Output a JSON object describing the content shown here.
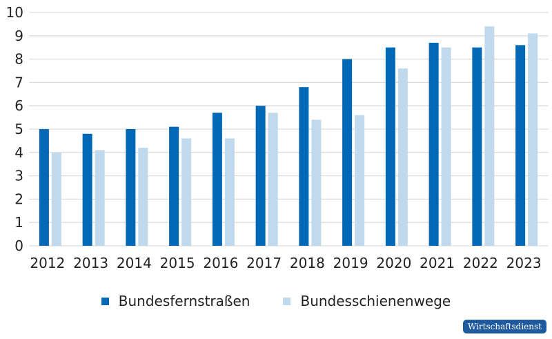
{
  "chart_data": {
    "type": "bar",
    "title": "",
    "xlabel": "",
    "ylabel": "",
    "ylim": [
      0,
      10
    ],
    "yticks": [
      0,
      1,
      2,
      3,
      4,
      5,
      6,
      7,
      8,
      9,
      10
    ],
    "grid": true,
    "legend_placement": "bottom",
    "categories": [
      "2012",
      "2013",
      "2014",
      "2015",
      "2016",
      "2017",
      "2018",
      "2019",
      "2020",
      "2021",
      "2022",
      "2023"
    ],
    "series": [
      {
        "name": "Bundesfernstraßen",
        "color": "#0068b4",
        "values": [
          5.0,
          4.8,
          5.0,
          5.1,
          5.7,
          6.0,
          6.8,
          8.0,
          8.5,
          8.7,
          8.5,
          8.6
        ]
      },
      {
        "name": "Bundesschienenwege",
        "color": "#c0d9ec",
        "values": [
          4.0,
          4.1,
          4.2,
          4.6,
          4.6,
          5.7,
          5.4,
          5.6,
          7.6,
          8.5,
          9.4,
          9.1
        ]
      }
    ]
  },
  "badge": "Wirtschaftsdienst"
}
